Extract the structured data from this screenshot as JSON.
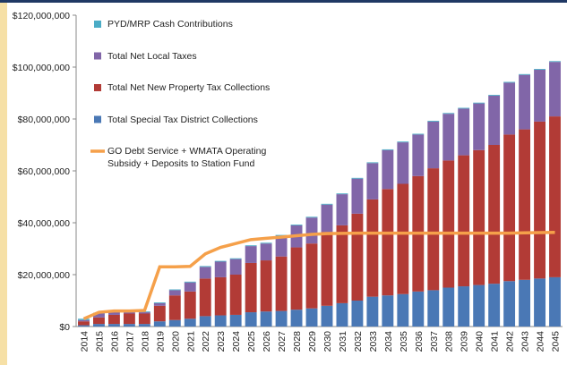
{
  "chart_data": {
    "type": "bar",
    "stacked": true,
    "categories": [
      "2014",
      "2015",
      "2016",
      "2017",
      "2018",
      "2019",
      "2020",
      "2021",
      "2022",
      "2023",
      "2024",
      "2025",
      "2026",
      "2027",
      "2028",
      "2029",
      "2030",
      "2031",
      "2032",
      "2033",
      "2034",
      "2035",
      "2036",
      "2037",
      "2038",
      "2039",
      "2040",
      "2041",
      "2042",
      "2043",
      "2044",
      "2045"
    ],
    "ylim": [
      0,
      120000000
    ],
    "yticks": [
      {
        "value": 0,
        "label": "$0"
      },
      {
        "value": 20000000,
        "label": "$20,000,000"
      },
      {
        "value": 40000000,
        "label": "$40,000,000"
      },
      {
        "value": 60000000,
        "label": "$60,000,000"
      },
      {
        "value": 80000000,
        "label": "$80,000,000"
      },
      {
        "value": 100000000,
        "label": "$100,000,000"
      },
      {
        "value": 120000000,
        "label": "$120,000,000"
      }
    ],
    "series": [
      {
        "name": "Total Special Tax District Collections",
        "color": "#4a78b5",
        "values": [
          500000,
          1000000,
          1000000,
          1000000,
          1000000,
          2000000,
          2500000,
          3000000,
          4000000,
          4300000,
          4500000,
          5500000,
          5800000,
          6000000,
          6500000,
          7000000,
          8000000,
          9000000,
          10000000,
          11500000,
          12000000,
          12500000,
          13500000,
          14000000,
          15000000,
          15500000,
          16000000,
          16500000,
          17500000,
          18000000,
          18500000,
          19000000
        ]
      },
      {
        "name": "Total Net New Property Tax Collections",
        "color": "#b23b36",
        "values": [
          1500000,
          2500000,
          3500000,
          4000000,
          4000000,
          6000000,
          9500000,
          10500000,
          14500000,
          14700000,
          15500000,
          19000000,
          19700000,
          21000000,
          24000000,
          25000000,
          28500000,
          30000000,
          33500000,
          37500000,
          41000000,
          42500000,
          44500000,
          47000000,
          49000000,
          50500000,
          52000000,
          53500000,
          56500000,
          58000000,
          60500000,
          62000000
        ]
      },
      {
        "name": "Total Net Local Taxes",
        "color": "#8166a8",
        "values": [
          500000,
          1500000,
          1500000,
          500000,
          500000,
          1000000,
          2000000,
          3500000,
          4500000,
          6000000,
          6000000,
          6500000,
          6500000,
          8000000,
          8500000,
          10000000,
          10500000,
          12000000,
          13500000,
          14000000,
          15000000,
          16000000,
          16000000,
          18000000,
          18000000,
          18000000,
          18000000,
          19000000,
          20000000,
          21000000,
          20000000,
          21000000
        ]
      },
      {
        "name": "PYD/MRP Cash Contributions",
        "color": "#4bacc6",
        "values": [
          500000,
          300000,
          300000,
          300000,
          300000,
          300000,
          300000,
          300000,
          300000,
          300000,
          300000,
          300000,
          300000,
          300000,
          300000,
          300000,
          300000,
          300000,
          300000,
          300000,
          300000,
          300000,
          300000,
          300000,
          300000,
          300000,
          300000,
          300000,
          300000,
          300000,
          300000,
          300000
        ]
      },
      {
        "name": "GO Debt Service + WMATA Operating Subsidy + Deposits to Station Fund",
        "type": "line",
        "color": "#f5a04a",
        "values": [
          3000000,
          5500000,
          6000000,
          6000000,
          6200000,
          23000000,
          23000000,
          23200000,
          28000000,
          30500000,
          32000000,
          33500000,
          34000000,
          34500000,
          35000000,
          35500000,
          35800000,
          35900000,
          36000000,
          36000000,
          36000000,
          36000000,
          36000000,
          36000000,
          36000000,
          36000000,
          36000000,
          36000000,
          36000000,
          36100000,
          36200000,
          36300000
        ]
      }
    ]
  }
}
